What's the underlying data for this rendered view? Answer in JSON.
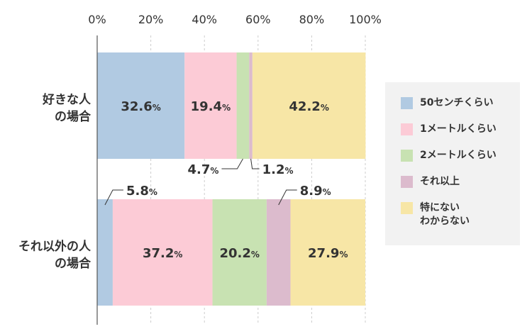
{
  "chart_data": {
    "type": "bar",
    "orientation": "horizontal",
    "stacked": true,
    "title": "",
    "xlabel": "",
    "ylabel": "",
    "xlim": [
      0,
      100
    ],
    "ticks": [
      "0%",
      "20%",
      "40%",
      "60%",
      "80%",
      "100%"
    ],
    "grid": true,
    "legend_position": "right",
    "categories": [
      [
        "好きな人",
        "の場合"
      ],
      [
        "それ以外の人",
        "の場合"
      ]
    ],
    "series": [
      {
        "name": "50センチくらい",
        "color": "#b1cae2",
        "values": [
          32.6,
          5.8
        ]
      },
      {
        "name": "1メートルくらい",
        "color": "#fccbd6",
        "values": [
          19.4,
          37.2
        ]
      },
      {
        "name": "2メートルくらい",
        "color": "#c8e2b2",
        "values": [
          4.7,
          20.2
        ]
      },
      {
        "name": "それ以上",
        "color": "#dcbbcd",
        "values": [
          1.2,
          8.9
        ]
      },
      {
        "name": "特にない\nわからない",
        "color": "#f7e6a6",
        "values": [
          42.2,
          27.9
        ]
      }
    ],
    "value_labels": [
      [
        "32.6",
        "19.4",
        "4.7",
        "1.2",
        "42.2"
      ],
      [
        "5.8",
        "37.2",
        "20.2",
        "8.9",
        "27.9"
      ]
    ],
    "unit": "%"
  }
}
